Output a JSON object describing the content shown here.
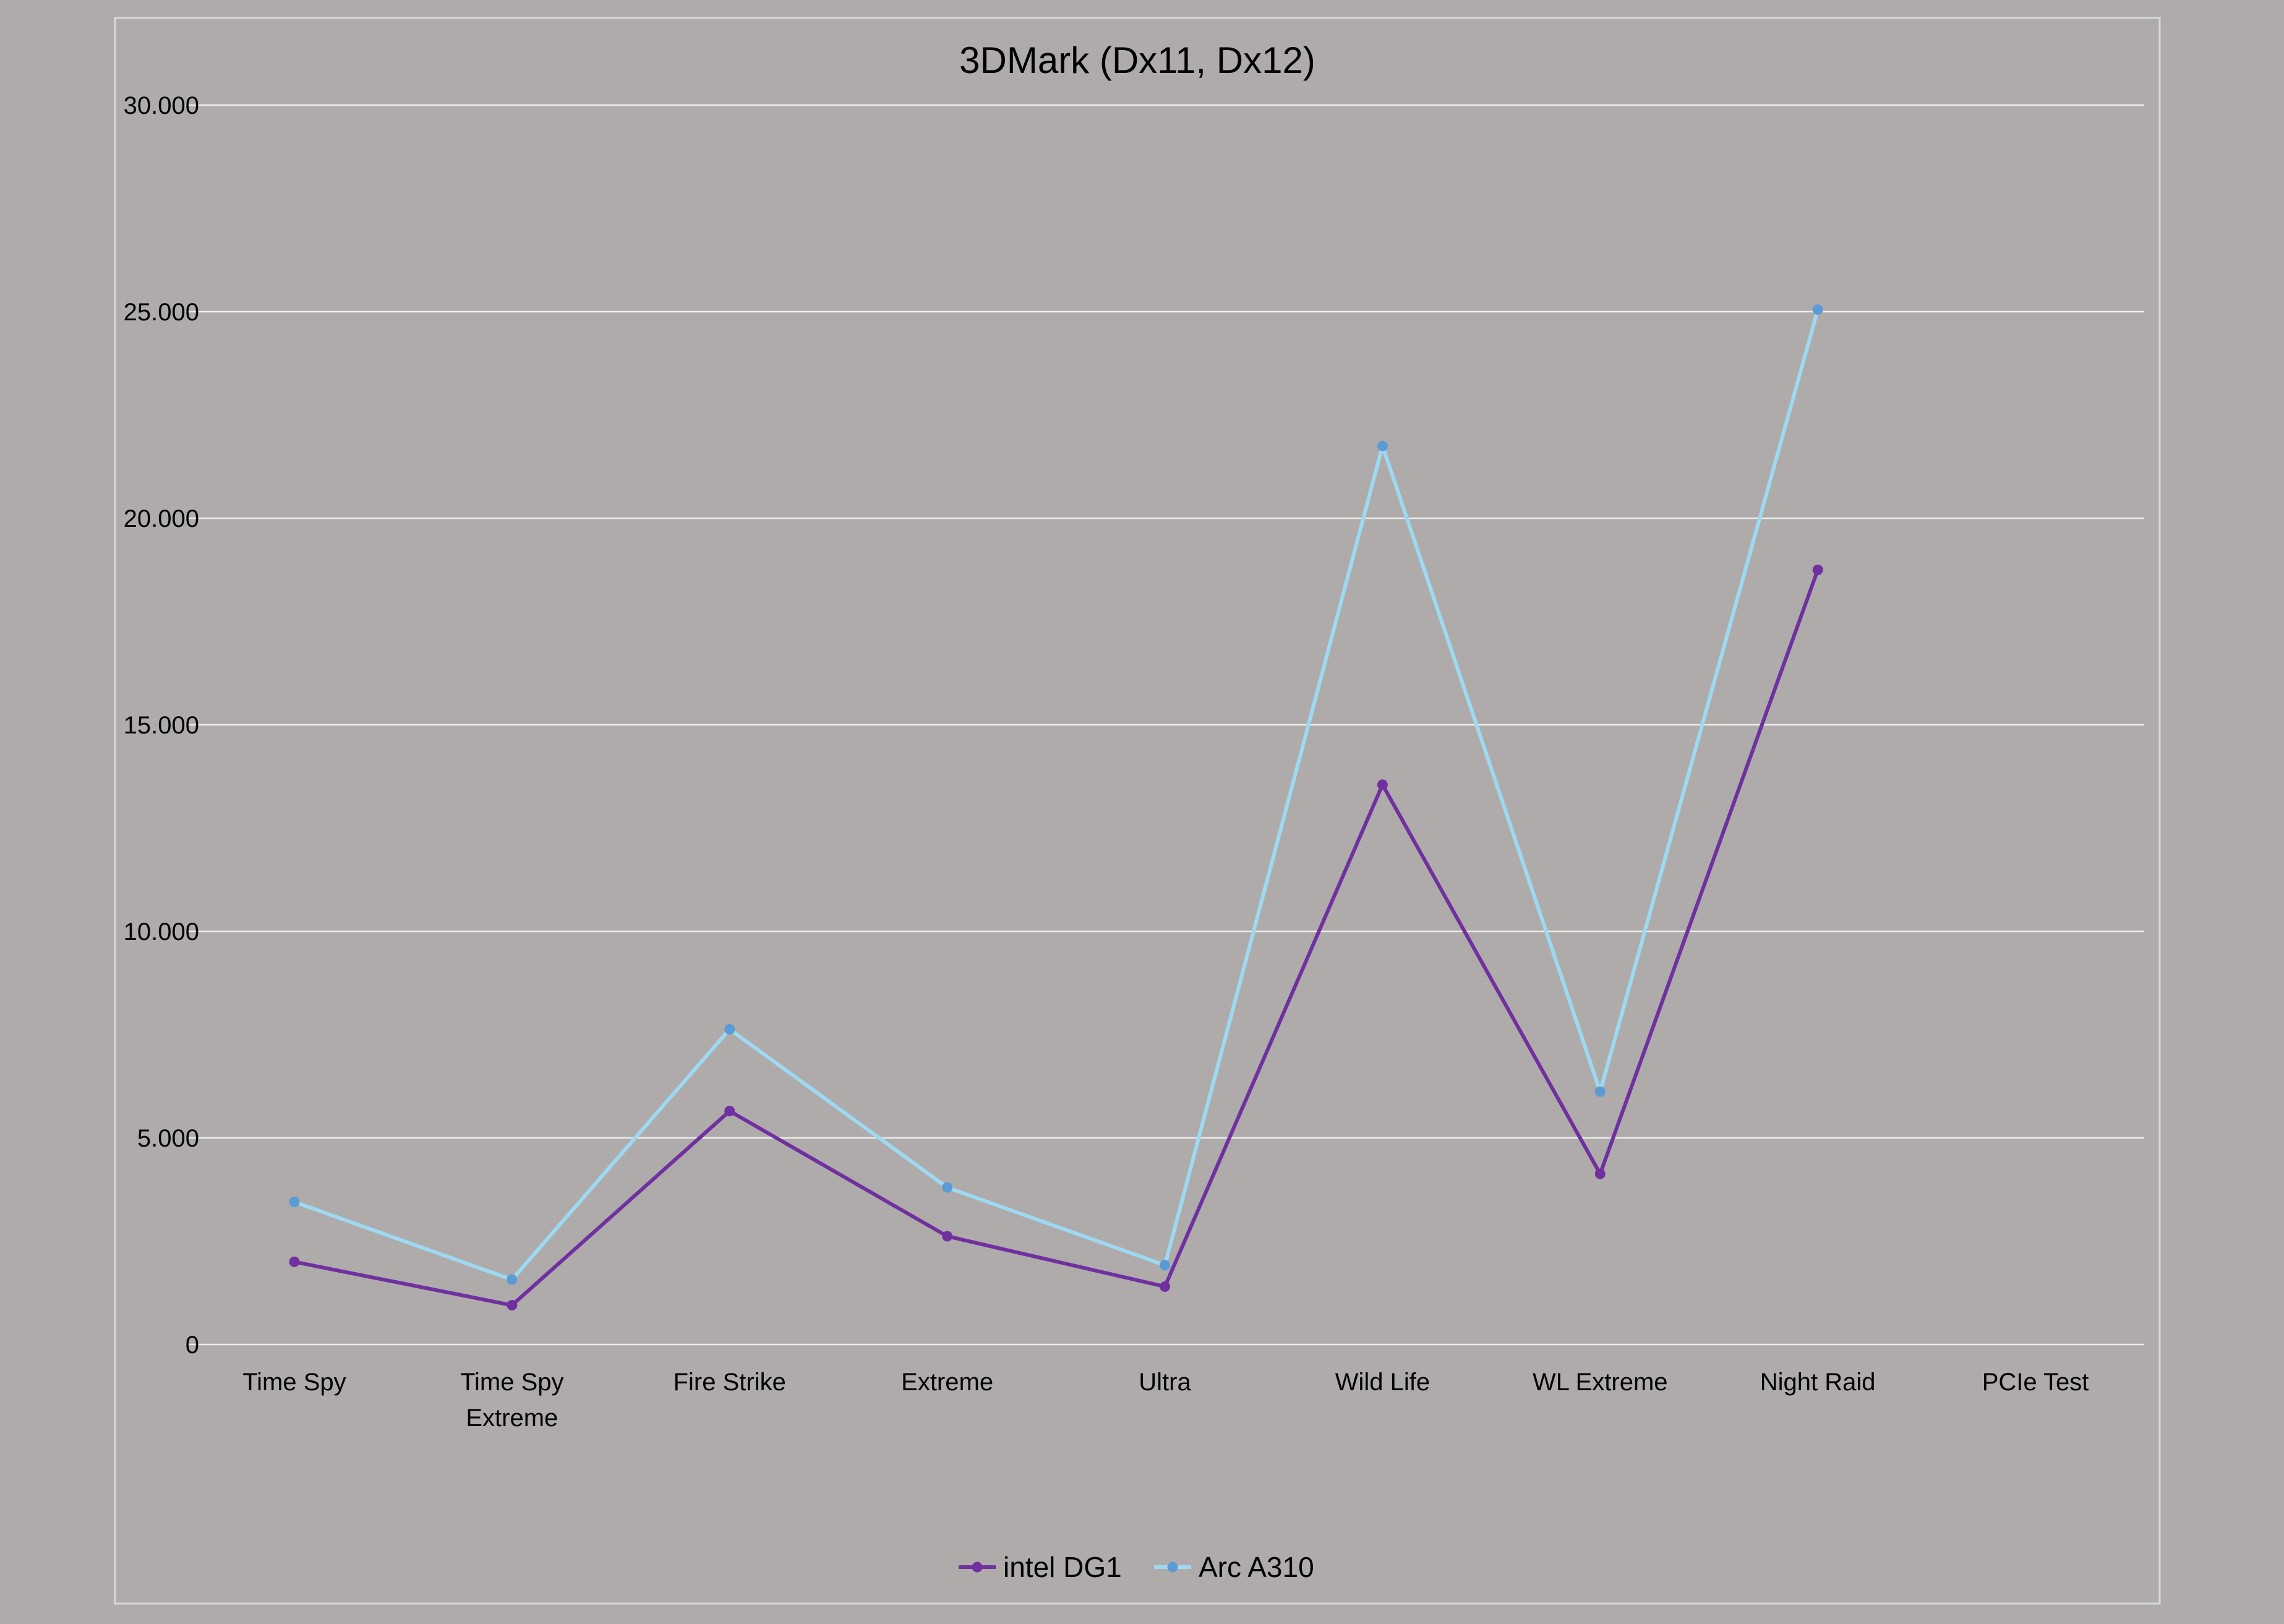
{
  "chart_data": {
    "type": "line",
    "title": "3DMark (Dx11, Dx12)",
    "xlabel": "",
    "ylabel": "",
    "categories": [
      [
        "Time Spy"
      ],
      [
        "Time Spy",
        "Extreme"
      ],
      [
        "Fire Strike"
      ],
      [
        "Extreme"
      ],
      [
        "Ultra"
      ],
      [
        "Wild Life"
      ],
      [
        "WL Extreme"
      ],
      [
        "Night Raid"
      ],
      [
        "PCIe Test"
      ]
    ],
    "ylim": [
      0,
      30000
    ],
    "yticks": [
      0,
      5000,
      10000,
      15000,
      20000,
      25000,
      30000
    ],
    "ytick_labels": [
      "0",
      "5.000",
      "10.000",
      "15.000",
      "20.000",
      "25.000",
      "30.000"
    ],
    "grid": true,
    "legend_position": "bottom",
    "series": [
      {
        "name": "intel DG1",
        "color": "#7030a0",
        "values": [
          2000,
          950,
          5650,
          2620,
          1400,
          13550,
          4130,
          18750,
          null
        ]
      },
      {
        "name": "Arc A310",
        "color": "#9dd9f3",
        "marker_color": "#5b9bd5",
        "values": [
          3450,
          1570,
          7630,
          3800,
          1920,
          21750,
          6120,
          25050,
          null
        ]
      }
    ]
  }
}
